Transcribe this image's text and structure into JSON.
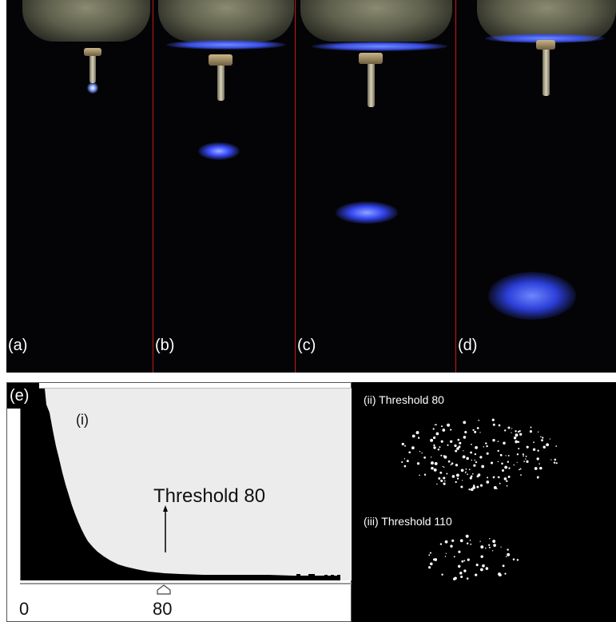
{
  "panels": [
    {
      "label": "(a)"
    },
    {
      "label": "(b)"
    },
    {
      "label": "(c)"
    },
    {
      "label": "(d)"
    }
  ],
  "histogram": {
    "panel_label": "(e)",
    "sub_label": "(i)",
    "annotation": "Threshold 80",
    "x_min_label": "0",
    "marker_label": "80"
  },
  "threshold_views": [
    {
      "title": "(ii) Threshold 80"
    },
    {
      "title": "(iii) Threshold 110"
    }
  ],
  "colors": {
    "divider": "#c21a1a",
    "glow_blue": "#3a4fe0",
    "background": "#050508"
  }
}
